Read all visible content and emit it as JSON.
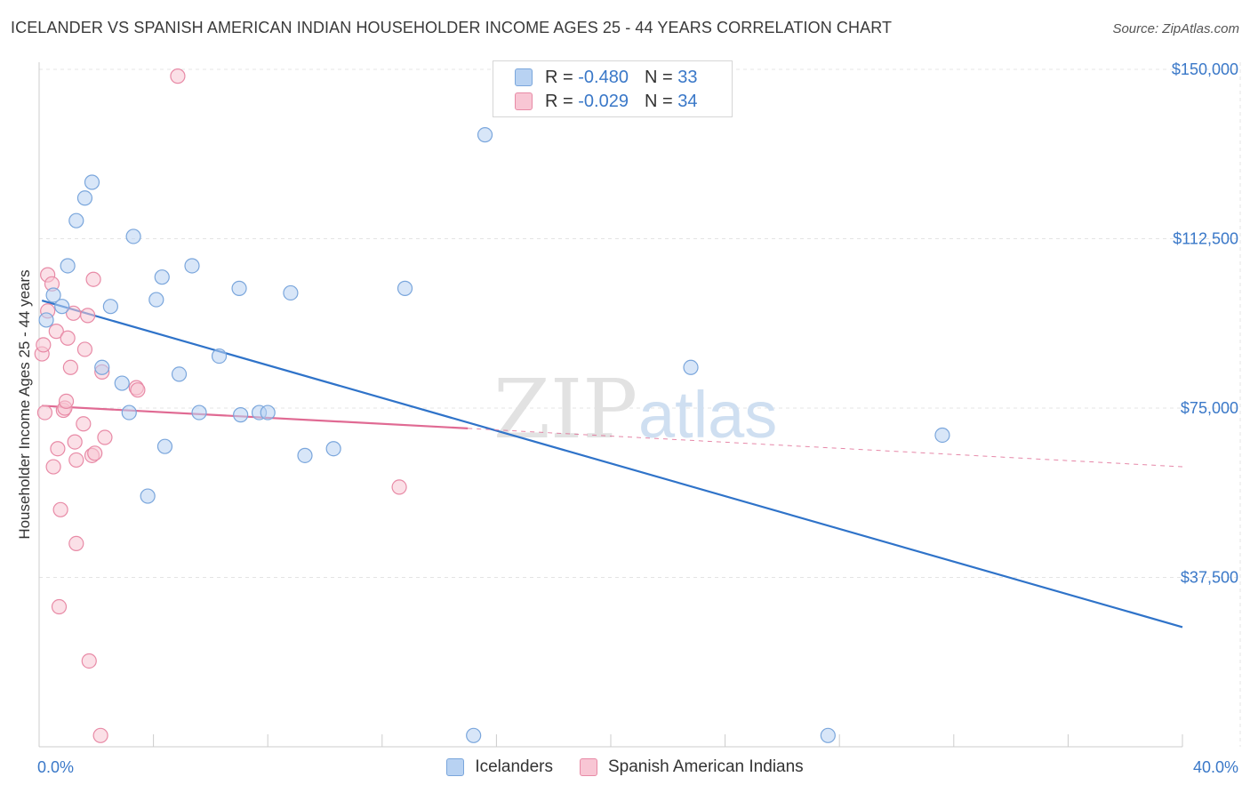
{
  "header": {
    "title": "ICELANDER VS SPANISH AMERICAN INDIAN HOUSEHOLDER INCOME AGES 25 - 44 YEARS CORRELATION CHART",
    "source": "Source: ZipAtlas.com"
  },
  "watermark": {
    "zip": "ZIP",
    "atlas": "atlas"
  },
  "legend": {
    "rows": [
      {
        "r_label": "R =",
        "r_value": "-0.480",
        "n_label": "N =",
        "n_value": "33"
      },
      {
        "r_label": "R =",
        "r_value": "-0.029",
        "n_label": "N =",
        "n_value": "34"
      }
    ]
  },
  "colors": {
    "icelanders_fill": "#b8d2f2",
    "icelanders_stroke": "#7aa6dc",
    "icelanders_line": "#2f73c9",
    "spanish_fill": "#f8c6d4",
    "spanish_stroke": "#e88aa6",
    "spanish_line": "#e06a93",
    "grid": "#e4e4e4",
    "tick_text": "#3a78c8"
  },
  "chart_data": {
    "type": "scatter",
    "title": "ICELANDER VS SPANISH AMERICAN INDIAN HOUSEHOLDER INCOME AGES 25 - 44 YEARS CORRELATION CHART",
    "xlabel": "",
    "ylabel": "Householder Income Ages 25 - 44 years",
    "xlim": [
      0,
      40
    ],
    "ylim": [
      0,
      155000
    ],
    "x_tick_labels": [
      "0.0%",
      "40.0%"
    ],
    "y_ticks": [
      37500,
      75000,
      112500,
      150000
    ],
    "y_tick_labels": [
      "$37,500",
      "$75,000",
      "$112,500",
      "$150,000"
    ],
    "grid": true,
    "legend_position": "top-center",
    "series": [
      {
        "name": "Icelanders",
        "R": -0.48,
        "N": 33,
        "points": [
          [
            0.25,
            94500
          ],
          [
            0.5,
            100000
          ],
          [
            0.8,
            97500
          ],
          [
            1.0,
            106500
          ],
          [
            1.3,
            116500
          ],
          [
            1.6,
            121500
          ],
          [
            1.85,
            125000
          ],
          [
            2.2,
            84000
          ],
          [
            2.5,
            97500
          ],
          [
            2.9,
            80500
          ],
          [
            3.15,
            74000
          ],
          [
            3.3,
            113000
          ],
          [
            3.8,
            55500
          ],
          [
            4.1,
            99000
          ],
          [
            4.3,
            104000
          ],
          [
            4.4,
            66500
          ],
          [
            4.9,
            82500
          ],
          [
            5.35,
            106500
          ],
          [
            5.6,
            74000
          ],
          [
            6.3,
            86500
          ],
          [
            7.0,
            101500
          ],
          [
            7.05,
            73500
          ],
          [
            7.7,
            74000
          ],
          [
            8.0,
            74000
          ],
          [
            8.8,
            100500
          ],
          [
            9.3,
            64500
          ],
          [
            10.3,
            66000
          ],
          [
            12.8,
            101500
          ],
          [
            15.2,
            2500
          ],
          [
            15.6,
            135500
          ],
          [
            22.8,
            84000
          ],
          [
            27.6,
            2500
          ],
          [
            31.6,
            69000
          ]
        ],
        "trend": {
          "x": [
            0.1,
            40
          ],
          "y": [
            98800,
            26500
          ]
        }
      },
      {
        "name": "Spanish American Indians",
        "R": -0.029,
        "N": 34,
        "points": [
          [
            0.1,
            87000
          ],
          [
            0.15,
            89000
          ],
          [
            0.2,
            74000
          ],
          [
            0.3,
            96500
          ],
          [
            0.3,
            104500
          ],
          [
            0.45,
            102500
          ],
          [
            0.5,
            62000
          ],
          [
            0.6,
            92000
          ],
          [
            0.65,
            66000
          ],
          [
            0.7,
            31000
          ],
          [
            0.75,
            52500
          ],
          [
            0.85,
            74500
          ],
          [
            0.9,
            75000
          ],
          [
            0.95,
            76500
          ],
          [
            1.0,
            90500
          ],
          [
            1.1,
            84000
          ],
          [
            1.2,
            96000
          ],
          [
            1.25,
            67500
          ],
          [
            1.3,
            63500
          ],
          [
            1.3,
            45000
          ],
          [
            1.55,
            71500
          ],
          [
            1.6,
            88000
          ],
          [
            1.7,
            95500
          ],
          [
            1.75,
            19000
          ],
          [
            1.85,
            64500
          ],
          [
            1.9,
            103500
          ],
          [
            1.95,
            65000
          ],
          [
            2.15,
            2500
          ],
          [
            2.2,
            83000
          ],
          [
            2.3,
            68500
          ],
          [
            3.4,
            79500
          ],
          [
            3.45,
            79000
          ],
          [
            4.85,
            148500
          ],
          [
            12.6,
            57500
          ]
        ],
        "trend": {
          "x": [
            0.1,
            15.0
          ],
          "y": [
            75500,
            70500
          ]
        },
        "trend_extension": {
          "x": [
            15.0,
            40
          ],
          "y": [
            70500,
            62000
          ]
        }
      }
    ]
  },
  "bottom_legend": {
    "items": [
      {
        "label": "Icelanders"
      },
      {
        "label": "Spanish American Indians"
      }
    ]
  }
}
